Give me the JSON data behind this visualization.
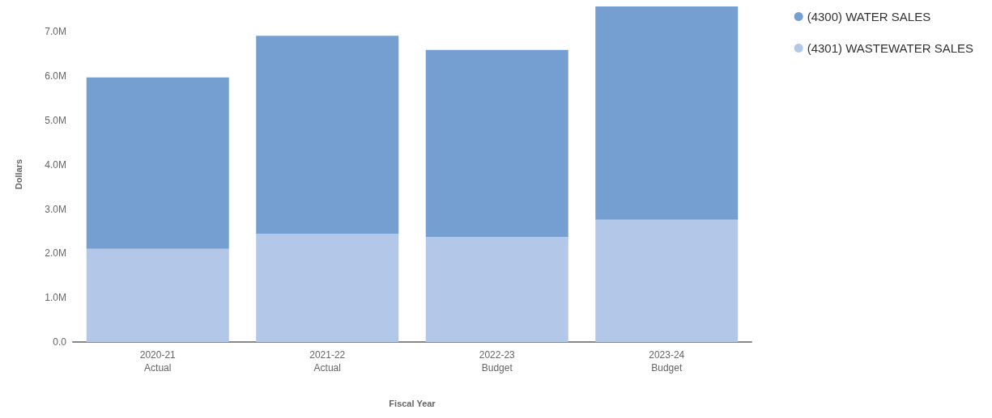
{
  "chart_data": {
    "type": "bar",
    "stacked": true,
    "xlabel": "Fiscal Year",
    "ylabel": "Dollars",
    "categories": [
      "2020-21\nActual",
      "2021-22\nActual",
      "2022-23\nBudget",
      "2023-24\nBudget"
    ],
    "series": [
      {
        "name": "(4301) WASTEWATER SALES",
        "color": "#b3c7e8",
        "values": [
          2.1,
          2.44,
          2.37,
          2.76
        ]
      },
      {
        "name": "(4300) WATER SALES",
        "color": "#759fd1",
        "values": [
          3.87,
          4.47,
          4.22,
          4.81
        ]
      }
    ],
    "ylim": [
      0,
      7.57
    ],
    "yticks": [
      {
        "value": 0,
        "label": "0.0"
      },
      {
        "value": 1,
        "label": "1.0M"
      },
      {
        "value": 2,
        "label": "2.0M"
      },
      {
        "value": 3,
        "label": "3.0M"
      },
      {
        "value": 4,
        "label": "4.0M"
      },
      {
        "value": 5,
        "label": "5.0M"
      },
      {
        "value": 6,
        "label": "6.0M"
      },
      {
        "value": 7,
        "label": "7.0M"
      }
    ],
    "grid": false,
    "legend": "top right"
  }
}
